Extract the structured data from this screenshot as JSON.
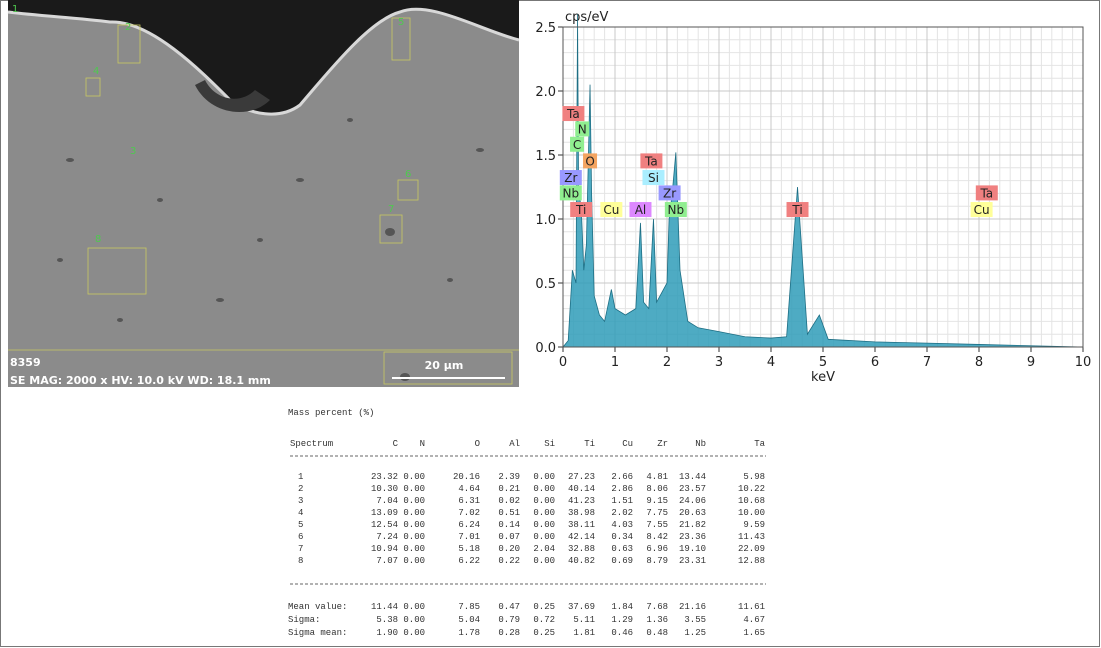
{
  "image": {
    "id": "8359",
    "info": "SE  MAG: 2000 x  HV: 10.0 kV  WD: 18.1 mm",
    "scale_bar": "20 µm",
    "spots": [
      "1",
      "2",
      "3",
      "4",
      "5",
      "6",
      "7",
      "8"
    ]
  },
  "chart_data": {
    "type": "area",
    "y_label": "cps/eV",
    "x_label": "keV",
    "xlim": [
      0,
      10
    ],
    "xticks": [
      0,
      1,
      2,
      3,
      4,
      5,
      6,
      7,
      8,
      9,
      10
    ],
    "ylim": [
      0,
      2.5
    ],
    "yticks": [
      {
        "value": 0,
        "label": "0.0"
      },
      0.5,
      {
        "value": 1,
        "label": "1.0"
      },
      1.5,
      {
        "value": 2,
        "label": "2.0"
      },
      2.5
    ],
    "grid": true,
    "x": [
      0,
      0.1,
      0.18,
      0.25,
      0.28,
      0.3,
      0.35,
      0.4,
      0.45,
      0.52,
      0.55,
      0.6,
      0.7,
      0.8,
      0.93,
      1.0,
      1.2,
      1.4,
      1.49,
      1.55,
      1.65,
      1.74,
      1.8,
      2.0,
      2.04,
      2.1,
      2.17,
      2.25,
      2.4,
      2.6,
      3,
      3.5,
      4,
      4.3,
      4.51,
      4.7,
      4.93,
      5.1,
      6,
      7,
      8,
      9,
      10
    ],
    "series": [
      {
        "name": "Spectrum",
        "color": "#2f9cb8",
        "values": [
          0,
          0.05,
          0.6,
          0.5,
          2.6,
          1.2,
          1.1,
          0.6,
          0.8,
          2.05,
          1.2,
          0.4,
          0.25,
          0.2,
          0.45,
          0.3,
          0.25,
          0.3,
          0.97,
          0.35,
          0.3,
          1.0,
          0.35,
          0.5,
          1.0,
          1.2,
          1.52,
          0.6,
          0.2,
          0.15,
          0.12,
          0.08,
          0.07,
          0.08,
          1.25,
          0.1,
          0.25,
          0.06,
          0.04,
          0.03,
          0.02,
          0.01,
          0
        ]
      }
    ],
    "annotations": [
      {
        "text": "Ta",
        "x": 0.2,
        "y": 1.82,
        "color": "#f08080"
      },
      {
        "text": "N",
        "x": 0.37,
        "y": 1.7,
        "color": "#90ee90"
      },
      {
        "text": "C",
        "x": 0.27,
        "y": 1.58,
        "color": "#90ee90"
      },
      {
        "text": "O",
        "x": 0.52,
        "y": 1.45,
        "color": "#f4a460"
      },
      {
        "text": "Zr",
        "x": 0.15,
        "y": 1.32,
        "color": "#9999ff"
      },
      {
        "text": "Nb",
        "x": 0.15,
        "y": 1.2,
        "color": "#90ee90"
      },
      {
        "text": "Ti",
        "x": 0.35,
        "y": 1.07,
        "color": "#f08080"
      },
      {
        "text": "Cu",
        "x": 0.93,
        "y": 1.07,
        "color": "#ffff99"
      },
      {
        "text": "Al",
        "x": 1.49,
        "y": 1.07,
        "color": "#dd88ff"
      },
      {
        "text": "Nb",
        "x": 2.17,
        "y": 1.07,
        "color": "#90ee90"
      },
      {
        "text": "Ta",
        "x": 1.7,
        "y": 1.45,
        "color": "#f08080"
      },
      {
        "text": "Si",
        "x": 1.74,
        "y": 1.32,
        "color": "#aaeeff"
      },
      {
        "text": "Zr",
        "x": 2.05,
        "y": 1.2,
        "color": "#9999ff"
      },
      {
        "text": "Ti",
        "x": 4.51,
        "y": 1.07,
        "color": "#f08080"
      },
      {
        "text": "Ta",
        "x": 8.15,
        "y": 1.2,
        "color": "#f08080"
      },
      {
        "text": "Cu",
        "x": 8.05,
        "y": 1.07,
        "color": "#ffff99"
      }
    ]
  },
  "table": {
    "title": "Mass percent (%)",
    "columns": [
      "Spectrum",
      "C",
      "N",
      "O",
      "Al",
      "Si",
      "Ti",
      "Cu",
      "Zr",
      "Nb",
      "Ta"
    ],
    "rows": [
      [
        "1",
        "23.32",
        "0.00",
        "20.16",
        "2.39",
        "0.00",
        "27.23",
        "2.66",
        "4.81",
        "13.44",
        "5.98"
      ],
      [
        "2",
        "10.30",
        "0.00",
        "4.64",
        "0.21",
        "0.00",
        "40.14",
        "2.86",
        "8.06",
        "23.57",
        "10.22"
      ],
      [
        "3",
        "7.04",
        "0.00",
        "6.31",
        "0.02",
        "0.00",
        "41.23",
        "1.51",
        "9.15",
        "24.06",
        "10.68"
      ],
      [
        "4",
        "13.09",
        "0.00",
        "7.02",
        "0.51",
        "0.00",
        "38.98",
        "2.02",
        "7.75",
        "20.63",
        "10.00"
      ],
      [
        "5",
        "12.54",
        "0.00",
        "6.24",
        "0.14",
        "0.00",
        "38.11",
        "4.03",
        "7.55",
        "21.82",
        "9.59"
      ],
      [
        "6",
        "7.24",
        "0.00",
        "7.01",
        "0.07",
        "0.00",
        "42.14",
        "0.34",
        "8.42",
        "23.36",
        "11.43"
      ],
      [
        "7",
        "10.94",
        "0.00",
        "5.18",
        "0.20",
        "2.04",
        "32.88",
        "0.63",
        "6.96",
        "19.10",
        "22.09"
      ],
      [
        "8",
        "7.07",
        "0.00",
        "6.22",
        "0.22",
        "0.00",
        "40.82",
        "0.69",
        "8.79",
        "23.31",
        "12.88"
      ]
    ],
    "summary": [
      [
        "Mean value:",
        "11.44",
        "0.00",
        "7.85",
        "0.47",
        "0.25",
        "37.69",
        "1.84",
        "7.68",
        "21.16",
        "11.61"
      ],
      [
        "Sigma:",
        "5.38",
        "0.00",
        "5.04",
        "0.79",
        "0.72",
        "5.11",
        "1.29",
        "1.36",
        "3.55",
        "4.67"
      ],
      [
        "Sigma mean:",
        "1.90",
        "0.00",
        "1.78",
        "0.28",
        "0.25",
        "1.81",
        "0.46",
        "0.48",
        "1.25",
        "1.65"
      ]
    ]
  }
}
